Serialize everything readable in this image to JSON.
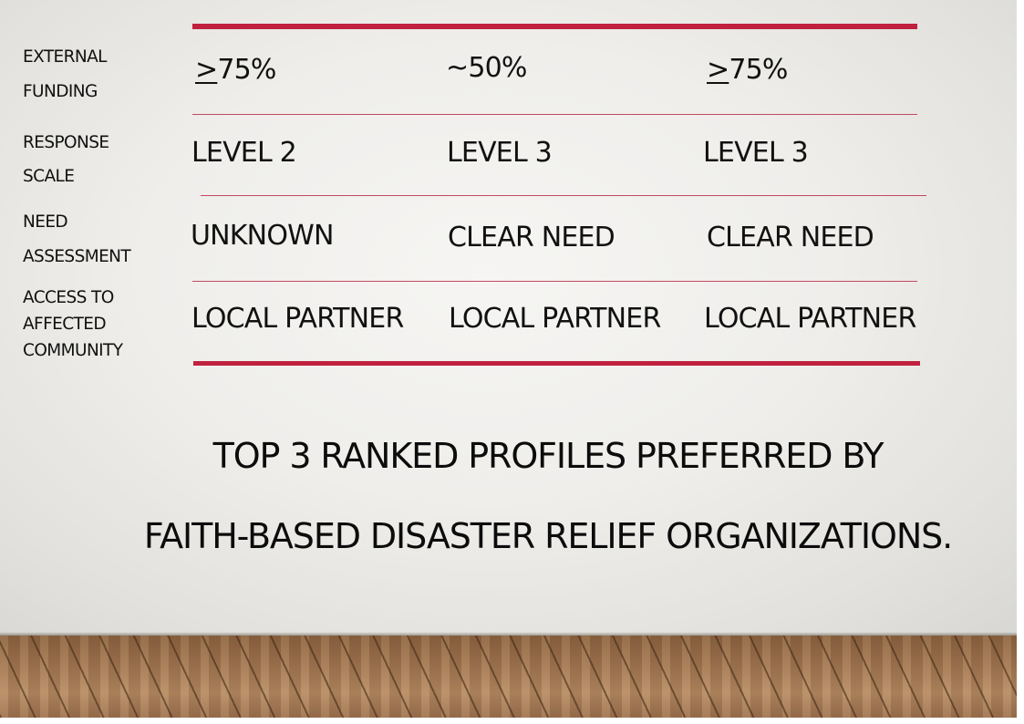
{
  "table": {
    "rows": [
      {
        "label_lines": [
          "EXTERNAL",
          "FUNDING"
        ],
        "cells": [
          {
            "prefix": ">",
            "value": "75%"
          },
          {
            "prefix": "",
            "value": "~50%"
          },
          {
            "prefix": ">",
            "value": "75%"
          }
        ]
      },
      {
        "label_lines": [
          "RESPONSE",
          "SCALE"
        ],
        "cells": [
          {
            "value": "LEVEL 2"
          },
          {
            "value": "LEVEL 3"
          },
          {
            "value": "LEVEL 3"
          }
        ]
      },
      {
        "label_lines": [
          "NEED",
          "ASSESSMENT"
        ],
        "cells": [
          {
            "value": "UNKNOWN"
          },
          {
            "value": "CLEAR NEED"
          },
          {
            "value": "CLEAR NEED"
          }
        ]
      },
      {
        "label_lines": [
          "ACCESS TO",
          "AFFECTED",
          "COMMUNITY"
        ],
        "cells": [
          {
            "value": "LOCAL PARTNER"
          },
          {
            "value": "LOCAL PARTNER"
          },
          {
            "value": "LOCAL PARTNER"
          }
        ]
      }
    ]
  },
  "caption": {
    "line1": "TOP 3 RANKED PROFILES PREFERRED BY",
    "line2": "FAITH-BASED DISASTER RELIEF ORGANIZATIONS."
  },
  "colors": {
    "accent_rule": "#c0213f",
    "text": "#111111"
  }
}
